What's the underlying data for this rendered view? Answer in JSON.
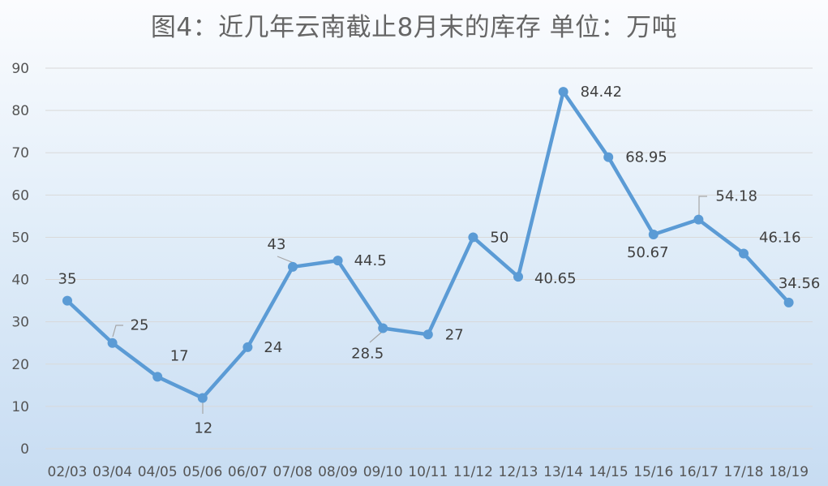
{
  "colors": {
    "series": "#5b9bd5",
    "gridline": "#d9d9d9",
    "leader_line": "#a6a6a6",
    "title": "#666666",
    "label": "#404040"
  },
  "chart_data": {
    "type": "line",
    "title": "图4：近几年云南截止8月末的库存 单位：万吨",
    "xlabel": "",
    "ylabel": "",
    "ylim": [
      0,
      90
    ],
    "y_ticks": [
      0,
      10,
      20,
      30,
      40,
      50,
      60,
      70,
      80,
      90
    ],
    "grid": true,
    "legend": "none",
    "categories": [
      "02/03",
      "03/04",
      "04/05",
      "05/06",
      "06/07",
      "07/08",
      "08/09",
      "09/10",
      "10/11",
      "11/12",
      "12/13",
      "13/14",
      "14/15",
      "15/16",
      "16/17",
      "17/18",
      "18/19"
    ],
    "series": [
      {
        "values": [
          35,
          25,
          17,
          12,
          24,
          43,
          44.5,
          28.5,
          27,
          50,
          40.65,
          84.42,
          68.95,
          50.67,
          54.18,
          46.16,
          34.56
        ],
        "data_labels": [
          "35",
          "25",
          "17",
          "12",
          "24",
          "43",
          "44.5",
          "28.5",
          "27",
          "50",
          "40.65",
          "84.42",
          "68.95",
          "50.67",
          "54.18",
          "46.16",
          "34.56"
        ]
      }
    ]
  }
}
